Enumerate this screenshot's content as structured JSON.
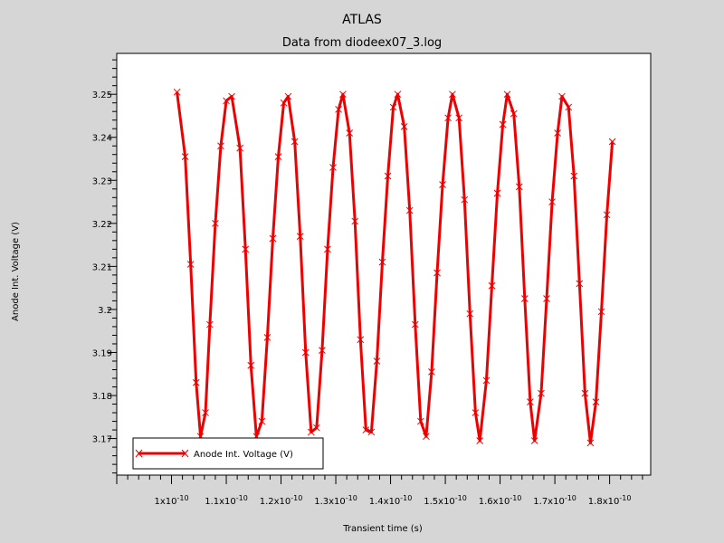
{
  "chart_data": {
    "type": "line",
    "title": "ATLAS",
    "subtitle": "Data from diodeex07_3.log",
    "xlabel": "Transient time (s)",
    "ylabel": "Anode Int. Voltage (V)",
    "xlim": [
      9e-11,
      1.875e-10
    ],
    "ylim": [
      3.1615,
      3.2595
    ],
    "x_ticks": [
      {
        "value": 1e-10,
        "label": "1x10",
        "exp": "-10"
      },
      {
        "value": 1.1e-10,
        "label": "1.1x10",
        "exp": "-10"
      },
      {
        "value": 1.2e-10,
        "label": "1.2x10",
        "exp": "-10"
      },
      {
        "value": 1.3e-10,
        "label": "1.3x10",
        "exp": "-10"
      },
      {
        "value": 1.4e-10,
        "label": "1.4x10",
        "exp": "-10"
      },
      {
        "value": 1.5e-10,
        "label": "1.5x10",
        "exp": "-10"
      },
      {
        "value": 1.6e-10,
        "label": "1.6x10",
        "exp": "-10"
      },
      {
        "value": 1.7e-10,
        "label": "1.7x10",
        "exp": "-10"
      },
      {
        "value": 1.8e-10,
        "label": "1.8x10",
        "exp": "-10"
      }
    ],
    "y_ticks": [
      {
        "value": 3.17,
        "label": "3.17"
      },
      {
        "value": 3.18,
        "label": "3.18"
      },
      {
        "value": 3.19,
        "label": "3.19"
      },
      {
        "value": 3.2,
        "label": "3.2"
      },
      {
        "value": 3.21,
        "label": "3.21"
      },
      {
        "value": 3.22,
        "label": "3.22"
      },
      {
        "value": 3.23,
        "label": "3.23"
      },
      {
        "value": 3.24,
        "label": "3.24"
      },
      {
        "value": 3.25,
        "label": "3.25"
      }
    ],
    "legend": {
      "placement": "bottom-left",
      "label": "Anode Int. Voltage (V)"
    },
    "series": [
      {
        "name": "Anode Int. Voltage (V)",
        "color": "#ee0000",
        "marker": "x",
        "points": [
          [
            1.01e-10,
            3.2505
          ],
          [
            1.025e-10,
            3.2355
          ],
          [
            1.035e-10,
            3.2105
          ],
          [
            1.045e-10,
            3.183
          ],
          [
            1.053e-10,
            3.1705
          ],
          [
            1.062e-10,
            3.176
          ],
          [
            1.07e-10,
            3.1965
          ],
          [
            1.08e-10,
            3.22
          ],
          [
            1.09e-10,
            3.238
          ],
          [
            1.1e-10,
            3.2485
          ],
          [
            1.11e-10,
            3.2495
          ],
          [
            1.125e-10,
            3.2375
          ],
          [
            1.135e-10,
            3.214
          ],
          [
            1.145e-10,
            3.187
          ],
          [
            1.155e-10,
            3.1705
          ],
          [
            1.165e-10,
            3.174
          ],
          [
            1.175e-10,
            3.1935
          ],
          [
            1.185e-10,
            3.2165
          ],
          [
            1.195e-10,
            3.2355
          ],
          [
            1.205e-10,
            3.248
          ],
          [
            1.213e-10,
            3.2495
          ],
          [
            1.225e-10,
            3.239
          ],
          [
            1.235e-10,
            3.217
          ],
          [
            1.245e-10,
            3.19
          ],
          [
            1.255e-10,
            3.1715
          ],
          [
            1.265e-10,
            3.1725
          ],
          [
            1.275e-10,
            3.1905
          ],
          [
            1.285e-10,
            3.214
          ],
          [
            1.295e-10,
            3.233
          ],
          [
            1.305e-10,
            3.2465
          ],
          [
            1.313e-10,
            3.25
          ],
          [
            1.325e-10,
            3.241
          ],
          [
            1.335e-10,
            3.2205
          ],
          [
            1.345e-10,
            3.193
          ],
          [
            1.355e-10,
            3.172
          ],
          [
            1.365e-10,
            3.1715
          ],
          [
            1.375e-10,
            3.188
          ],
          [
            1.385e-10,
            3.211
          ],
          [
            1.395e-10,
            3.231
          ],
          [
            1.405e-10,
            3.247
          ],
          [
            1.413e-10,
            3.25
          ],
          [
            1.425e-10,
            3.2425
          ],
          [
            1.435e-10,
            3.223
          ],
          [
            1.445e-10,
            3.1965
          ],
          [
            1.455e-10,
            3.174
          ],
          [
            1.465e-10,
            3.1705
          ],
          [
            1.475e-10,
            3.1855
          ],
          [
            1.485e-10,
            3.2085
          ],
          [
            1.495e-10,
            3.229
          ],
          [
            1.505e-10,
            3.2445
          ],
          [
            1.513e-10,
            3.25
          ],
          [
            1.525e-10,
            3.2445
          ],
          [
            1.535e-10,
            3.2255
          ],
          [
            1.545e-10,
            3.199
          ],
          [
            1.555e-10,
            3.176
          ],
          [
            1.563e-10,
            3.1695
          ],
          [
            1.575e-10,
            3.1835
          ],
          [
            1.585e-10,
            3.2055
          ],
          [
            1.595e-10,
            3.227
          ],
          [
            1.605e-10,
            3.243
          ],
          [
            1.613e-10,
            3.25
          ],
          [
            1.625e-10,
            3.2455
          ],
          [
            1.635e-10,
            3.2285
          ],
          [
            1.645e-10,
            3.2025
          ],
          [
            1.655e-10,
            3.1785
          ],
          [
            1.663e-10,
            3.1695
          ],
          [
            1.675e-10,
            3.1805
          ],
          [
            1.685e-10,
            3.2025
          ],
          [
            1.695e-10,
            3.225
          ],
          [
            1.705e-10,
            3.241
          ],
          [
            1.713e-10,
            3.2495
          ],
          [
            1.725e-10,
            3.247
          ],
          [
            1.735e-10,
            3.231
          ],
          [
            1.745e-10,
            3.206
          ],
          [
            1.755e-10,
            3.1805
          ],
          [
            1.765e-10,
            3.169
          ],
          [
            1.775e-10,
            3.1785
          ],
          [
            1.785e-10,
            3.1995
          ],
          [
            1.795e-10,
            3.222
          ],
          [
            1.805e-10,
            3.239
          ]
        ]
      }
    ]
  }
}
